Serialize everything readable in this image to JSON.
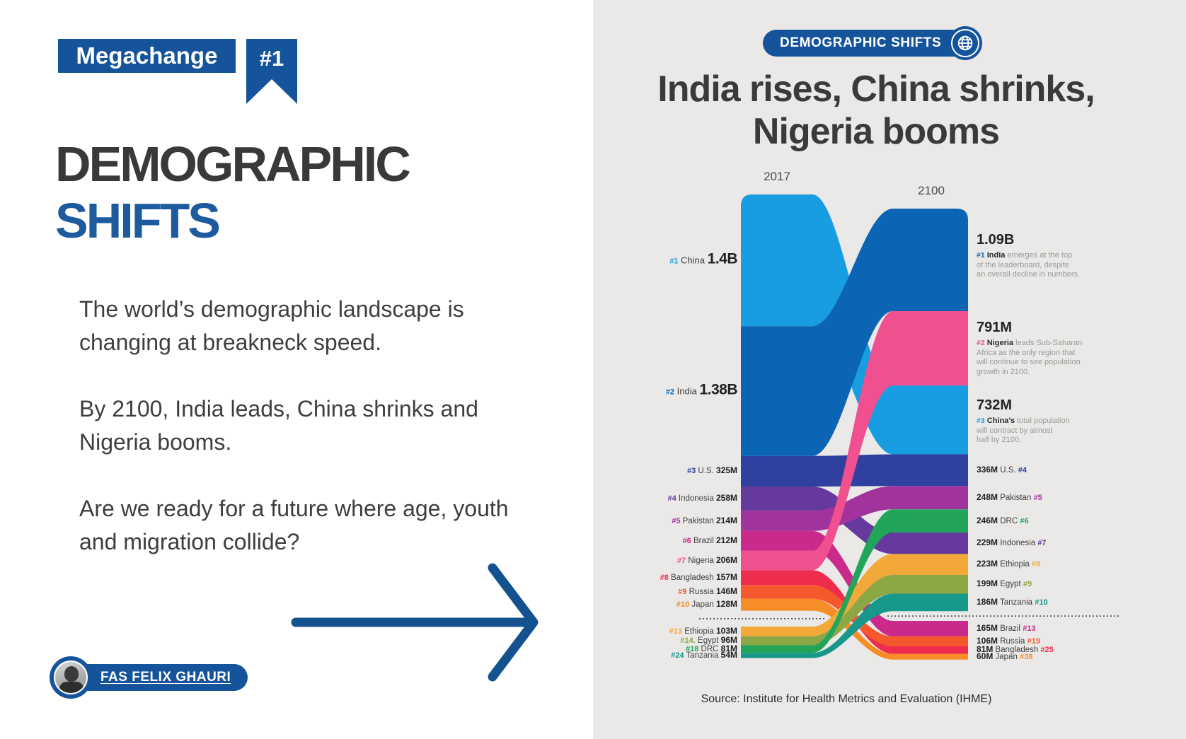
{
  "left_panel": {
    "kicker": "Megachange",
    "ribbon": "#1",
    "title_line1": "DEMOGRAPHIC",
    "title_line2": "SHIFTS",
    "paragraphs": [
      "The world’s demographic landscape is changing at breakneck speed.",
      "By 2100, India leads, China shrinks and Nigeria booms.",
      "Are we ready for a future where age, youth and migration collide?"
    ],
    "author": "FAS FELIX GHAURI"
  },
  "right_panel": {
    "badge": "DEMOGRAPHIC SHIFTS",
    "headline_line1": "India rises, China shrinks,",
    "headline_line2": "Nigeria booms",
    "source": "Source: Institute for Health Metrics and Evaluation (IHME)"
  },
  "colors": {
    "brand_blue": "#15549b",
    "title_dark": "#3a383a",
    "title_blue": "#1e5b9e",
    "panel_gray": "#eae9e7",
    "arrow_blue": "#14528f"
  },
  "chart_data": {
    "type": "alluvial",
    "columns": [
      "2017",
      "2100"
    ],
    "unit": "population, millions",
    "countries": [
      {
        "name": "China",
        "color": "#189de2",
        "pop_2017": 1400,
        "label_2017": "1.4B",
        "rank_2017": "#1",
        "pop_2100": 732,
        "label_2100": "732M",
        "rank_2100": "#3"
      },
      {
        "name": "India",
        "color": "#0b64b4",
        "pop_2017": 1380,
        "label_2017": "1.38B",
        "rank_2017": "#2",
        "pop_2100": 1090,
        "label_2100": "1.09B",
        "rank_2100": "#1"
      },
      {
        "name": "U.S.",
        "color": "#30409e",
        "pop_2017": 325,
        "label_2017": "325M",
        "rank_2017": "#3",
        "pop_2100": 336,
        "label_2100": "336M",
        "rank_2100": "#4"
      },
      {
        "name": "Indonesia",
        "color": "#653a9c",
        "pop_2017": 258,
        "label_2017": "258M",
        "rank_2017": "#4",
        "pop_2100": 229,
        "label_2100": "229M",
        "rank_2100": "#7"
      },
      {
        "name": "Pakistan",
        "color": "#a0339c",
        "pop_2017": 214,
        "label_2017": "214M",
        "rank_2017": "#5",
        "pop_2100": 248,
        "label_2100": "248M",
        "rank_2100": "#5"
      },
      {
        "name": "Brazil",
        "color": "#c92a8b",
        "pop_2017": 212,
        "label_2017": "212M",
        "rank_2017": "#6",
        "pop_2100": 165,
        "label_2100": "165M",
        "rank_2100": "#13"
      },
      {
        "name": "Nigeria",
        "color": "#f0508f",
        "pop_2017": 206,
        "label_2017": "206M",
        "rank_2017": "#7",
        "pop_2100": 791,
        "label_2100": "791M",
        "rank_2100": "#2"
      },
      {
        "name": "Bangladesh",
        "color": "#ee2c4e",
        "pop_2017": 157,
        "label_2017": "157M",
        "rank_2017": "#8",
        "pop_2100": 81,
        "label_2100": "81M",
        "rank_2100": "#25"
      },
      {
        "name": "Russia",
        "color": "#f6582e",
        "pop_2017": 146,
        "label_2017": "146M",
        "rank_2017": "#9",
        "pop_2100": 106,
        "label_2100": "106M",
        "rank_2100": "#19"
      },
      {
        "name": "Japan",
        "color": "#f78d26",
        "pop_2017": 128,
        "label_2017": "128M",
        "rank_2017": "#10",
        "pop_2100": 60,
        "label_2100": "60M",
        "rank_2100": "#38"
      },
      {
        "name": "Ethiopia",
        "color": "#f3a83a",
        "pop_2017": 103,
        "label_2017": "103M",
        "rank_2017": "#13",
        "pop_2100": 223,
        "label_2100": "223M",
        "rank_2100": "#8"
      },
      {
        "name": "Egypt",
        "color": "#8ca844",
        "pop_2017": 96,
        "label_2017": "96M",
        "rank_2017": "#14.",
        "pop_2100": 199,
        "label_2100": "199M",
        "rank_2100": "#9"
      },
      {
        "name": "DRC",
        "color": "#22a55b",
        "pop_2017": 81,
        "label_2017": "81M",
        "rank_2017": "#18",
        "pop_2100": 246,
        "label_2100": "246M",
        "rank_2100": "#6"
      },
      {
        "name": "Tanzania",
        "color": "#17988a",
        "pop_2017": 54,
        "label_2017": "54M",
        "rank_2017": "#24",
        "pop_2100": 186,
        "label_2100": "186M",
        "rank_2100": "#10"
      }
    ],
    "left_order": [
      "China",
      "India",
      "U.S.",
      "Indonesia",
      "Pakistan",
      "Brazil",
      "Nigeria",
      "Bangladesh",
      "Russia",
      "Japan",
      "|",
      "Ethiopia",
      "Egypt",
      "DRC",
      "Tanzania"
    ],
    "right_order": [
      "India",
      "Nigeria",
      "China",
      "U.S.",
      "Pakistan",
      "DRC",
      "Indonesia",
      "Ethiopia",
      "Egypt",
      "Tanzania",
      "|",
      "Brazil",
      "Russia",
      "Bangladesh",
      "Japan"
    ],
    "annotations": [
      {
        "value": "1.09B",
        "rank": "#1",
        "country": "India",
        "color": "#0b64b4",
        "text": "emerges at the top\nof the leaderboard, despite\nan overall decline in numbers."
      },
      {
        "value": "791M",
        "rank": "#2",
        "country": "Nigeria",
        "color": "#f0508f",
        "text": "leads Sub-Saharan\nAfrica as the only region that\nwill continue to see population\ngrowth in 2100."
      },
      {
        "value": "732M",
        "rank": "#3",
        "country": "China’s",
        "color": "#189de2",
        "text": "total population\nwill contract by almost\nhalf by 2100."
      }
    ]
  }
}
